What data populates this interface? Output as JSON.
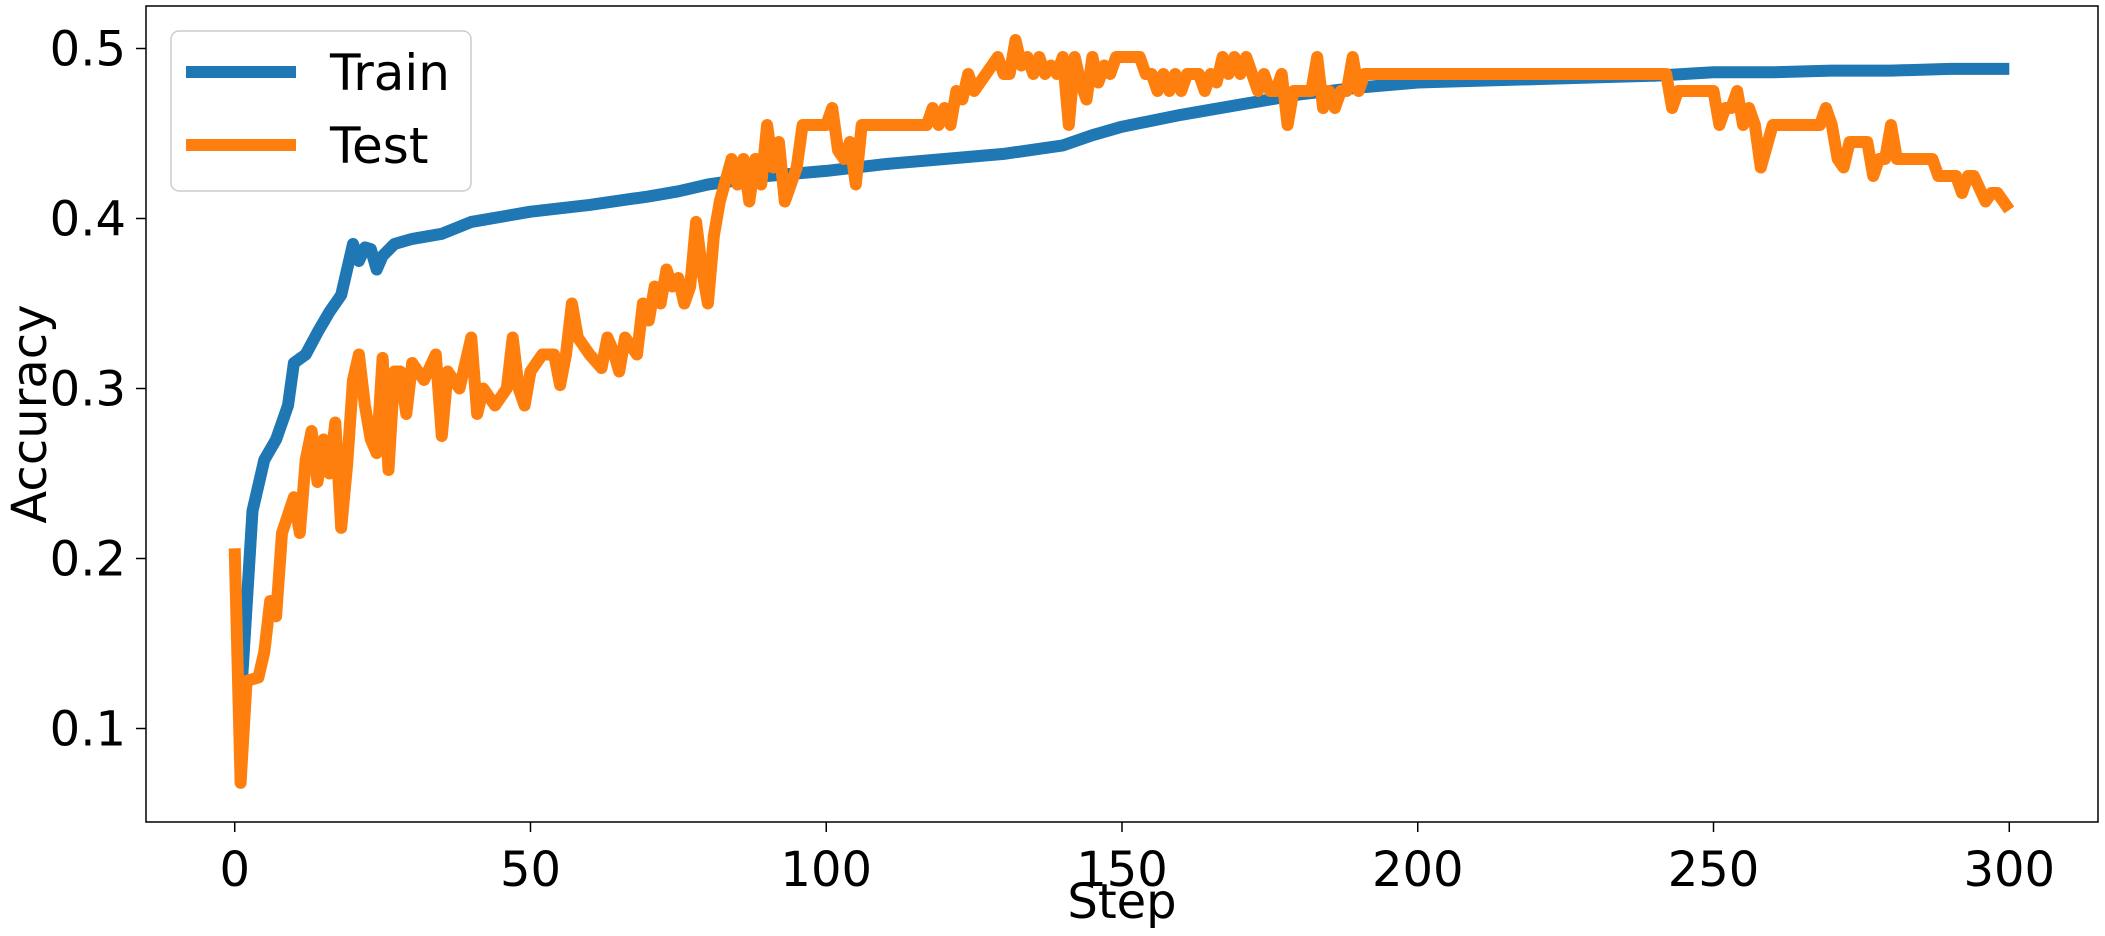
{
  "chart_data": {
    "type": "line",
    "title": "",
    "xlabel": "Step",
    "ylabel": "Accuracy",
    "xlim": [
      -15,
      315
    ],
    "ylim": [
      0.045,
      0.525
    ],
    "xticks": [
      0,
      50,
      100,
      150,
      200,
      250,
      300
    ],
    "yticks": [
      0.1,
      0.2,
      0.3,
      0.4,
      0.5
    ],
    "xtick_labels": [
      "0",
      "50",
      "100",
      "150",
      "200",
      "250",
      "300"
    ],
    "ytick_labels": [
      "0.1",
      "0.2",
      "0.3",
      "0.4",
      "0.5"
    ],
    "grid": false,
    "legend_position": "top-left",
    "series": [
      {
        "name": "Train",
        "color": "#1f77b4",
        "points": [
          [
            0,
            0.115
          ],
          [
            1,
            0.115
          ],
          [
            3,
            0.228
          ],
          [
            5,
            0.258
          ],
          [
            7,
            0.27
          ],
          [
            9,
            0.29
          ],
          [
            10,
            0.315
          ],
          [
            12,
            0.32
          ],
          [
            14,
            0.333
          ],
          [
            16,
            0.345
          ],
          [
            18,
            0.355
          ],
          [
            20,
            0.385
          ],
          [
            21,
            0.375
          ],
          [
            22,
            0.383
          ],
          [
            23,
            0.382
          ],
          [
            24,
            0.37
          ],
          [
            25,
            0.378
          ],
          [
            27,
            0.385
          ],
          [
            30,
            0.388
          ],
          [
            35,
            0.391
          ],
          [
            40,
            0.398
          ],
          [
            50,
            0.404
          ],
          [
            60,
            0.408
          ],
          [
            70,
            0.413
          ],
          [
            75,
            0.416
          ],
          [
            80,
            0.42
          ],
          [
            90,
            0.425
          ],
          [
            100,
            0.428
          ],
          [
            110,
            0.432
          ],
          [
            120,
            0.435
          ],
          [
            130,
            0.438
          ],
          [
            140,
            0.443
          ],
          [
            145,
            0.449
          ],
          [
            150,
            0.454
          ],
          [
            160,
            0.461
          ],
          [
            170,
            0.467
          ],
          [
            180,
            0.473
          ],
          [
            190,
            0.477
          ],
          [
            200,
            0.48
          ],
          [
            210,
            0.481
          ],
          [
            220,
            0.482
          ],
          [
            230,
            0.483
          ],
          [
            240,
            0.484
          ],
          [
            250,
            0.486
          ],
          [
            260,
            0.486
          ],
          [
            270,
            0.487
          ],
          [
            280,
            0.487
          ],
          [
            290,
            0.488
          ],
          [
            300,
            0.488
          ]
        ]
      },
      {
        "name": "Test",
        "color": "#ff7f0e",
        "points": [
          [
            0,
            0.206
          ],
          [
            1,
            0.068
          ],
          [
            2,
            0.128
          ],
          [
            4,
            0.13
          ],
          [
            5,
            0.145
          ],
          [
            6,
            0.175
          ],
          [
            7,
            0.166
          ],
          [
            8,
            0.215
          ],
          [
            10,
            0.236
          ],
          [
            11,
            0.215
          ],
          [
            12,
            0.258
          ],
          [
            13,
            0.275
          ],
          [
            14,
            0.245
          ],
          [
            15,
            0.27
          ],
          [
            16,
            0.25
          ],
          [
            17,
            0.28
          ],
          [
            18,
            0.218
          ],
          [
            19,
            0.255
          ],
          [
            20,
            0.305
          ],
          [
            21,
            0.32
          ],
          [
            22,
            0.29
          ],
          [
            23,
            0.27
          ],
          [
            24,
            0.262
          ],
          [
            25,
            0.318
          ],
          [
            26,
            0.252
          ],
          [
            27,
            0.31
          ],
          [
            28,
            0.31
          ],
          [
            29,
            0.285
          ],
          [
            30,
            0.315
          ],
          [
            32,
            0.305
          ],
          [
            34,
            0.32
          ],
          [
            35,
            0.272
          ],
          [
            36,
            0.31
          ],
          [
            38,
            0.3
          ],
          [
            40,
            0.33
          ],
          [
            41,
            0.285
          ],
          [
            42,
            0.3
          ],
          [
            44,
            0.29
          ],
          [
            46,
            0.3
          ],
          [
            47,
            0.33
          ],
          [
            48,
            0.3
          ],
          [
            49,
            0.29
          ],
          [
            50,
            0.31
          ],
          [
            52,
            0.32
          ],
          [
            54,
            0.32
          ],
          [
            55,
            0.302
          ],
          [
            56,
            0.32
          ],
          [
            57,
            0.35
          ],
          [
            58,
            0.33
          ],
          [
            60,
            0.32
          ],
          [
            62,
            0.312
          ],
          [
            63,
            0.33
          ],
          [
            64,
            0.322
          ],
          [
            65,
            0.31
          ],
          [
            66,
            0.33
          ],
          [
            68,
            0.32
          ],
          [
            69,
            0.35
          ],
          [
            70,
            0.34
          ],
          [
            71,
            0.36
          ],
          [
            72,
            0.35
          ],
          [
            73,
            0.37
          ],
          [
            74,
            0.36
          ],
          [
            75,
            0.365
          ],
          [
            76,
            0.35
          ],
          [
            77,
            0.36
          ],
          [
            78,
            0.398
          ],
          [
            79,
            0.37
          ],
          [
            80,
            0.35
          ],
          [
            81,
            0.39
          ],
          [
            82,
            0.41
          ],
          [
            84,
            0.435
          ],
          [
            85,
            0.42
          ],
          [
            86,
            0.435
          ],
          [
            87,
            0.41
          ],
          [
            88,
            0.435
          ],
          [
            89,
            0.42
          ],
          [
            90,
            0.455
          ],
          [
            91,
            0.43
          ],
          [
            92,
            0.445
          ],
          [
            93,
            0.41
          ],
          [
            94,
            0.42
          ],
          [
            95,
            0.43
          ],
          [
            96,
            0.455
          ],
          [
            100,
            0.455
          ],
          [
            101,
            0.465
          ],
          [
            102,
            0.44
          ],
          [
            103,
            0.435
          ],
          [
            104,
            0.445
          ],
          [
            105,
            0.42
          ],
          [
            106,
            0.455
          ],
          [
            115,
            0.455
          ],
          [
            117,
            0.455
          ],
          [
            118,
            0.465
          ],
          [
            119,
            0.455
          ],
          [
            120,
            0.465
          ],
          [
            121,
            0.455
          ],
          [
            122,
            0.475
          ],
          [
            123,
            0.47
          ],
          [
            124,
            0.485
          ],
          [
            125,
            0.475
          ],
          [
            127,
            0.485
          ],
          [
            128,
            0.49
          ],
          [
            129,
            0.495
          ],
          [
            130,
            0.485
          ],
          [
            131,
            0.485
          ],
          [
            132,
            0.505
          ],
          [
            133,
            0.49
          ],
          [
            134,
            0.495
          ],
          [
            135,
            0.485
          ],
          [
            136,
            0.495
          ],
          [
            137,
            0.485
          ],
          [
            138,
            0.49
          ],
          [
            139,
            0.485
          ],
          [
            140,
            0.495
          ],
          [
            141,
            0.455
          ],
          [
            142,
            0.495
          ],
          [
            143,
            0.48
          ],
          [
            144,
            0.47
          ],
          [
            145,
            0.495
          ],
          [
            146,
            0.48
          ],
          [
            147,
            0.49
          ],
          [
            148,
            0.485
          ],
          [
            149,
            0.495
          ],
          [
            153,
            0.495
          ],
          [
            154,
            0.485
          ],
          [
            155,
            0.485
          ],
          [
            156,
            0.475
          ],
          [
            157,
            0.485
          ],
          [
            158,
            0.475
          ],
          [
            159,
            0.485
          ],
          [
            160,
            0.475
          ],
          [
            161,
            0.485
          ],
          [
            163,
            0.485
          ],
          [
            164,
            0.475
          ],
          [
            165,
            0.485
          ],
          [
            166,
            0.48
          ],
          [
            167,
            0.495
          ],
          [
            168,
            0.485
          ],
          [
            169,
            0.495
          ],
          [
            170,
            0.485
          ],
          [
            171,
            0.495
          ],
          [
            172,
            0.485
          ],
          [
            173,
            0.475
          ],
          [
            174,
            0.485
          ],
          [
            175,
            0.475
          ],
          [
            176,
            0.475
          ],
          [
            177,
            0.485
          ],
          [
            178,
            0.455
          ],
          [
            179,
            0.475
          ],
          [
            180,
            0.475
          ],
          [
            181,
            0.475
          ],
          [
            182,
            0.475
          ],
          [
            183,
            0.495
          ],
          [
            184,
            0.465
          ],
          [
            185,
            0.475
          ],
          [
            186,
            0.465
          ],
          [
            187,
            0.475
          ],
          [
            188,
            0.475
          ],
          [
            189,
            0.495
          ],
          [
            190,
            0.475
          ],
          [
            191,
            0.485
          ],
          [
            200,
            0.485
          ],
          [
            210,
            0.485
          ],
          [
            220,
            0.485
          ],
          [
            230,
            0.485
          ],
          [
            242,
            0.485
          ],
          [
            243,
            0.465
          ],
          [
            244,
            0.475
          ],
          [
            250,
            0.475
          ],
          [
            251,
            0.455
          ],
          [
            252,
            0.465
          ],
          [
            253,
            0.465
          ],
          [
            254,
            0.475
          ],
          [
            255,
            0.455
          ],
          [
            256,
            0.465
          ],
          [
            257,
            0.455
          ],
          [
            258,
            0.43
          ],
          [
            260,
            0.455
          ],
          [
            268,
            0.455
          ],
          [
            269,
            0.465
          ],
          [
            270,
            0.455
          ],
          [
            271,
            0.435
          ],
          [
            272,
            0.43
          ],
          [
            273,
            0.445
          ],
          [
            276,
            0.445
          ],
          [
            277,
            0.425
          ],
          [
            278,
            0.435
          ],
          [
            279,
            0.435
          ],
          [
            280,
            0.455
          ],
          [
            281,
            0.435
          ],
          [
            287,
            0.435
          ],
          [
            288,
            0.425
          ],
          [
            291,
            0.425
          ],
          [
            292,
            0.415
          ],
          [
            293,
            0.425
          ],
          [
            294,
            0.425
          ],
          [
            296,
            0.41
          ],
          [
            297,
            0.415
          ],
          [
            298,
            0.415
          ],
          [
            299,
            0.41
          ],
          [
            300,
            0.405
          ]
        ]
      }
    ]
  }
}
